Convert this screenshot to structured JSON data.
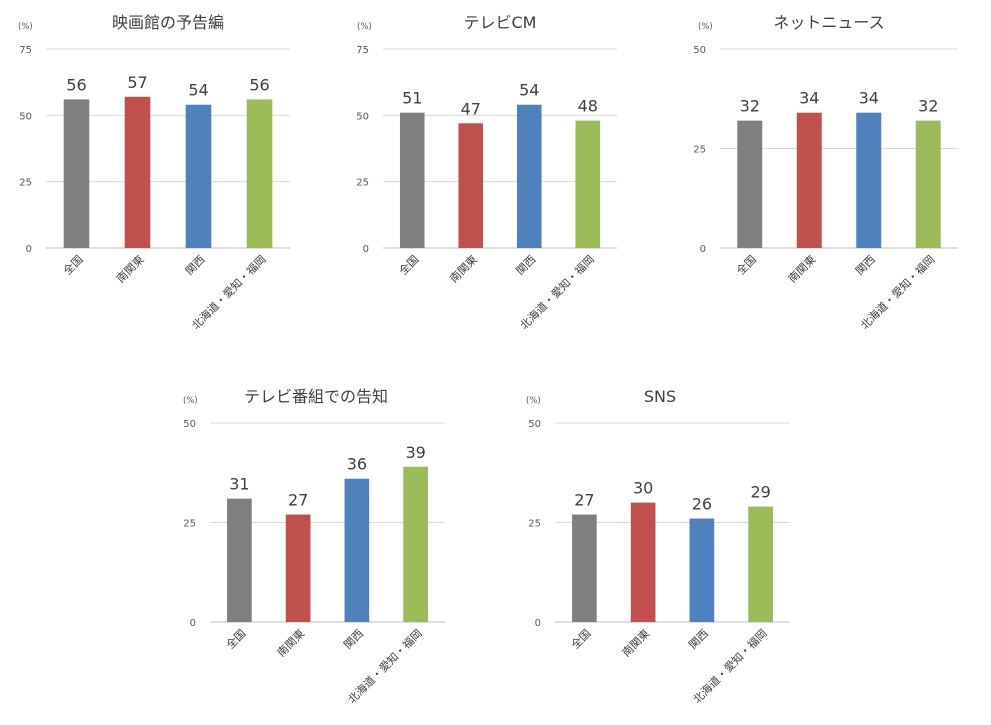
{
  "chart_data": [
    {
      "type": "bar",
      "title": "映画館の予告編",
      "unit": "(%)",
      "categories": [
        "全国",
        "南関東",
        "関西",
        "北海道・愛知・福岡"
      ],
      "values": [
        56,
        57,
        54,
        56
      ],
      "ylim": [
        0,
        75
      ],
      "yticks": [
        0,
        25,
        50,
        75
      ],
      "grid": true,
      "bar_colors": [
        "#7f7f7f",
        "#c0504d",
        "#4f81bd",
        "#9bbb59"
      ]
    },
    {
      "type": "bar",
      "title": "テレビCM",
      "unit": "(%)",
      "categories": [
        "全国",
        "南関東",
        "関西",
        "北海道・愛知・福岡"
      ],
      "values": [
        51,
        47,
        54,
        48
      ],
      "ylim": [
        0,
        75
      ],
      "yticks": [
        0,
        25,
        50,
        75
      ],
      "grid": true,
      "bar_colors": [
        "#7f7f7f",
        "#c0504d",
        "#4f81bd",
        "#9bbb59"
      ]
    },
    {
      "type": "bar",
      "title": "ネットニュース",
      "unit": "(%)",
      "categories": [
        "全国",
        "南関東",
        "関西",
        "北海道・愛知・福岡"
      ],
      "values": [
        32,
        34,
        34,
        32
      ],
      "ylim": [
        0,
        50
      ],
      "yticks": [
        0,
        25,
        50
      ],
      "grid": true,
      "bar_colors": [
        "#7f7f7f",
        "#c0504d",
        "#4f81bd",
        "#9bbb59"
      ]
    },
    {
      "type": "bar",
      "title": "テレビ番組での告知",
      "unit": "(%)",
      "categories": [
        "全国",
        "南関東",
        "関西",
        "北海道・愛知・福岡"
      ],
      "values": [
        31,
        27,
        36,
        39
      ],
      "ylim": [
        0,
        50
      ],
      "yticks": [
        0,
        25,
        50
      ],
      "grid": true,
      "bar_colors": [
        "#7f7f7f",
        "#c0504d",
        "#4f81bd",
        "#9bbb59"
      ]
    },
    {
      "type": "bar",
      "title": "SNS",
      "unit": "(%)",
      "categories": [
        "全国",
        "南関東",
        "関西",
        "北海道・愛知・福岡"
      ],
      "values": [
        27,
        30,
        26,
        29
      ],
      "ylim": [
        0,
        50
      ],
      "yticks": [
        0,
        25,
        50
      ],
      "grid": true,
      "bar_colors": [
        "#7f7f7f",
        "#c0504d",
        "#4f81bd",
        "#9bbb59"
      ]
    }
  ]
}
